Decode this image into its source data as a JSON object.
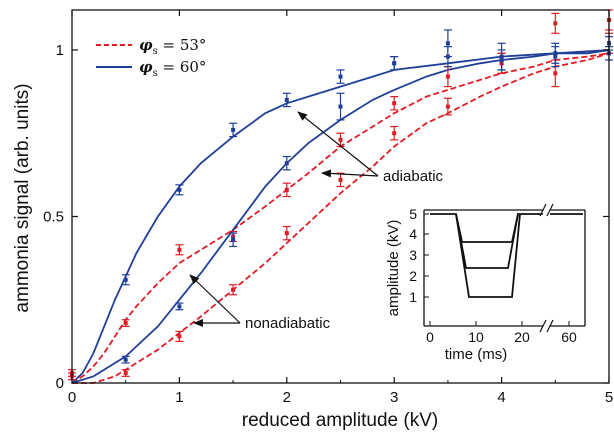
{
  "chart_data": {
    "type": "line",
    "xlabel": "reduced amplitude (kV)",
    "ylabel": "ammonia signal (arb. units)",
    "xlim": [
      0,
      5
    ],
    "ylim": [
      0,
      1.12
    ],
    "xticks": [
      "0",
      "1",
      "2",
      "3",
      "4",
      "5"
    ],
    "xtick_values": [
      0,
      1,
      2,
      3,
      4,
      5
    ],
    "yticks": [
      "0",
      "0.5",
      "1"
    ],
    "ytick_values": [
      0,
      0.5,
      1
    ],
    "grid": false,
    "legend_position": "top-left",
    "legend": [
      {
        "symbol": "φ",
        "subscript": "s",
        "equals": " = 53°",
        "color": "#e31b23",
        "dash": true
      },
      {
        "symbol": "φ",
        "subscript": "s",
        "equals": " = 60°",
        "color": "#1f3f99",
        "dash": false
      }
    ],
    "series": [
      {
        "name": "φs = 53° adiabatic",
        "color": "#e31b23",
        "style": "dashed",
        "x": [
          0,
          0.1,
          0.2,
          0.3,
          0.4,
          0.5,
          0.6,
          0.8,
          1.0,
          1.2,
          1.5,
          1.8,
          2.0,
          2.2,
          2.5,
          2.8,
          3.0,
          3.3,
          3.5,
          3.8,
          4.0,
          4.3,
          4.5,
          4.8,
          5.0
        ],
        "y": [
          0.0,
          0.02,
          0.05,
          0.09,
          0.14,
          0.19,
          0.23,
          0.3,
          0.36,
          0.4,
          0.46,
          0.53,
          0.58,
          0.63,
          0.71,
          0.77,
          0.81,
          0.86,
          0.88,
          0.91,
          0.93,
          0.95,
          0.97,
          0.98,
          0.99
        ]
      },
      {
        "name": "φs = 53° nonadiabatic",
        "color": "#e31b23",
        "style": "dashed",
        "x": [
          0,
          0.2,
          0.4,
          0.5,
          0.6,
          0.8,
          1.0,
          1.2,
          1.5,
          1.8,
          2.0,
          2.2,
          2.5,
          2.8,
          3.0,
          3.3,
          3.5,
          3.8,
          4.0,
          4.3,
          4.5,
          4.8,
          5.0
        ],
        "y": [
          0.0,
          0.0,
          0.02,
          0.04,
          0.06,
          0.1,
          0.15,
          0.2,
          0.28,
          0.36,
          0.42,
          0.48,
          0.57,
          0.65,
          0.71,
          0.78,
          0.81,
          0.86,
          0.89,
          0.93,
          0.95,
          0.97,
          0.99
        ]
      },
      {
        "name": "φs = 60° adiabatic",
        "color": "#1f3f99",
        "style": "solid",
        "x": [
          0,
          0.1,
          0.2,
          0.3,
          0.4,
          0.5,
          0.6,
          0.8,
          1.0,
          1.2,
          1.5,
          1.8,
          2.0,
          2.2,
          2.5,
          2.8,
          3.0,
          3.5,
          4.0,
          4.5,
          5.0
        ],
        "y": [
          0.0,
          0.03,
          0.09,
          0.17,
          0.25,
          0.32,
          0.39,
          0.5,
          0.59,
          0.66,
          0.74,
          0.81,
          0.84,
          0.86,
          0.89,
          0.92,
          0.94,
          0.96,
          0.98,
          0.99,
          1.0
        ]
      },
      {
        "name": "φs = 60° nonadiabatic",
        "color": "#1f3f99",
        "style": "solid",
        "x": [
          0,
          0.2,
          0.4,
          0.5,
          0.6,
          0.8,
          1.0,
          1.2,
          1.5,
          1.8,
          2.0,
          2.2,
          2.5,
          2.8,
          3.0,
          3.3,
          3.5,
          3.8,
          4.0,
          4.3,
          4.5,
          4.8,
          5.0
        ],
        "y": [
          0.0,
          0.02,
          0.06,
          0.08,
          0.11,
          0.17,
          0.25,
          0.33,
          0.46,
          0.59,
          0.66,
          0.72,
          0.79,
          0.85,
          0.88,
          0.92,
          0.94,
          0.96,
          0.97,
          0.98,
          0.99,
          0.99,
          1.0
        ]
      }
    ],
    "points": [
      {
        "color": "#e31b23",
        "x": [
          0,
          0.5,
          1.0,
          1.5,
          2.0,
          2.5,
          3.0,
          3.5,
          4.0,
          4.5,
          5.0
        ],
        "y": [
          0.03,
          0.18,
          0.4,
          0.44,
          0.58,
          0.73,
          0.84,
          0.92,
          0.96,
          1.08,
          1.09
        ],
        "err": [
          0.01,
          0.01,
          0.015,
          0.015,
          0.02,
          0.02,
          0.02,
          0.03,
          0.03,
          0.03,
          0.03
        ]
      },
      {
        "color": "#e31b23",
        "x": [
          0,
          0.5,
          1.0,
          1.5,
          2.0,
          2.5,
          3.0,
          3.5,
          4.0,
          4.5,
          5.0
        ],
        "y": [
          0.02,
          0.03,
          0.14,
          0.28,
          0.45,
          0.61,
          0.75,
          0.83,
          0.96,
          0.93,
          1.02
        ],
        "err": [
          0.01,
          0.01,
          0.015,
          0.015,
          0.02,
          0.02,
          0.02,
          0.025,
          0.03,
          0.04,
          0.03
        ]
      },
      {
        "color": "#1f3f99",
        "x": [
          0.5,
          1.0,
          1.5,
          2.0,
          2.5,
          3.0,
          3.5,
          4.0,
          4.5,
          5.0
        ],
        "y": [
          0.31,
          0.58,
          0.76,
          0.85,
          0.92,
          0.96,
          1.02,
          0.98,
          0.99,
          1.02
        ],
        "err": [
          0.015,
          0.015,
          0.02,
          0.02,
          0.02,
          0.02,
          0.04,
          0.04,
          0.03,
          0.02
        ]
      },
      {
        "color": "#1f3f99",
        "x": [
          0.5,
          1.0,
          1.5,
          2.0,
          2.5,
          3.0,
          3.5,
          4.0,
          4.5,
          5.0
        ],
        "y": [
          0.07,
          0.23,
          0.43,
          0.66,
          0.83,
          0.96,
          0.98,
          0.97,
          0.98,
          0.99
        ],
        "err": [
          0.01,
          0.01,
          0.02,
          0.02,
          0.04,
          0.02,
          0.03,
          0.03,
          0.03,
          0.02
        ]
      }
    ],
    "annotations": {
      "adiabatic": "adiabatic",
      "nonadiabatic": "nonadiabatic"
    },
    "inset": {
      "xlabel": "time (ms)",
      "ylabel": "amplitude (kV)",
      "xticks": [
        "0",
        "10",
        "20",
        "60"
      ],
      "yticks": [
        "1",
        "2",
        "3",
        "4",
        "5"
      ],
      "series_levels": [
        3.6,
        2.4,
        1.0
      ]
    }
  }
}
